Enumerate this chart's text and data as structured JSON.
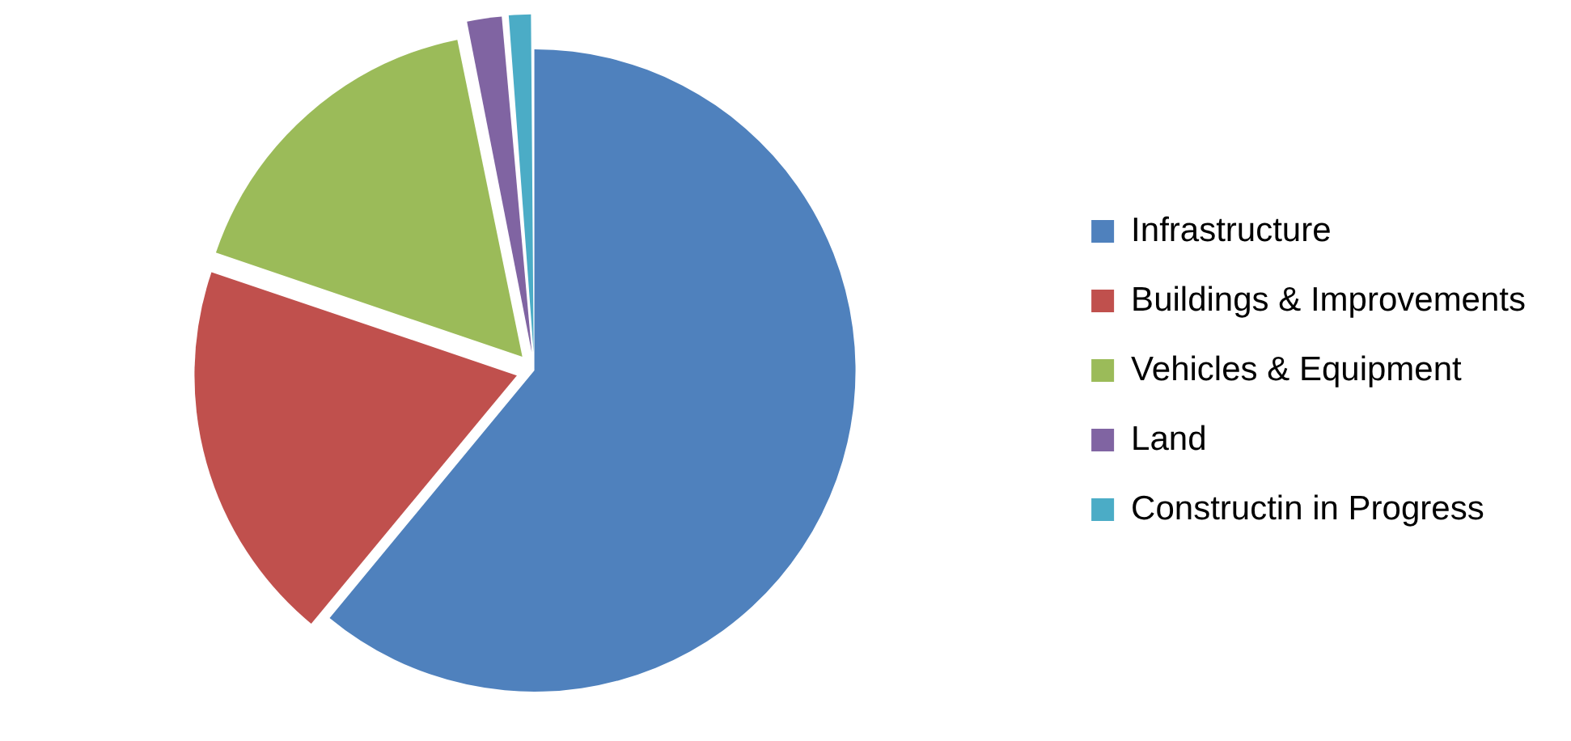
{
  "chart_data": {
    "type": "pie",
    "categories": [
      "Infrastructure",
      "Buildings & Improvements",
      "Vehicles & Equipment",
      "Land",
      "Constructin in Progress"
    ],
    "values": [
      61,
      19.2,
      16.6,
      1.9,
      1.3
    ],
    "colors": [
      "#4f81bd",
      "#c0504d",
      "#9bbb59",
      "#8064a2",
      "#4bacc6"
    ],
    "legend": "right"
  }
}
